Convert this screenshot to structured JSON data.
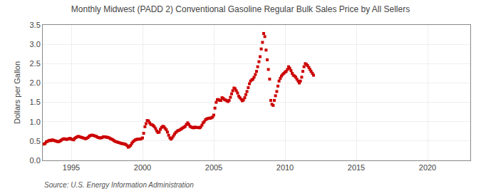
{
  "chart_data": {
    "type": "scatter",
    "title": "Monthly Midwest (PADD 2) Conventional Gasoline Regular Bulk Sales Price by All Sellers",
    "ylabel": "Dollars per Gallon",
    "annotation": "Source: U.S. Energy Information Administration",
    "color": "#CC0000",
    "marker": "square",
    "grid": true,
    "xlim": [
      1993.0,
      2023.0
    ],
    "ylim": [
      0.0,
      3.5
    ],
    "xticks": [
      1995,
      2000,
      2005,
      2010,
      2015,
      2020
    ],
    "yticks": [
      {
        "value": 0.0,
        "label": "0.0"
      },
      0.5,
      {
        "value": 1.0,
        "label": "1.0"
      },
      1.5,
      {
        "value": 2.0,
        "label": "2.0"
      },
      2.5,
      {
        "value": 3.0,
        "label": "3.0"
      },
      3.5
    ],
    "x": [
      1993.08,
      1993.17,
      1993.25,
      1993.33,
      1993.42,
      1993.5,
      1993.58,
      1993.67,
      1993.75,
      1993.83,
      1993.92,
      1994.0,
      1994.08,
      1994.17,
      1994.25,
      1994.33,
      1994.42,
      1994.5,
      1994.58,
      1994.67,
      1994.75,
      1994.83,
      1994.92,
      1995.0,
      1995.08,
      1995.17,
      1995.25,
      1995.33,
      1995.42,
      1995.5,
      1995.58,
      1995.67,
      1995.75,
      1995.83,
      1995.92,
      1996.0,
      1996.08,
      1996.17,
      1996.25,
      1996.33,
      1996.42,
      1996.5,
      1996.58,
      1996.67,
      1996.75,
      1996.83,
      1996.92,
      1997.0,
      1997.08,
      1997.17,
      1997.25,
      1997.33,
      1997.42,
      1997.5,
      1997.58,
      1997.67,
      1997.75,
      1997.83,
      1997.92,
      1998.0,
      1998.08,
      1998.17,
      1998.25,
      1998.33,
      1998.42,
      1998.5,
      1998.58,
      1998.67,
      1998.75,
      1998.83,
      1998.92,
      1999.0,
      1999.08,
      1999.17,
      1999.25,
      1999.33,
      1999.42,
      1999.5,
      1999.58,
      1999.67,
      1999.75,
      1999.83,
      1999.92,
      2000.0,
      2000.08,
      2000.17,
      2000.25,
      2000.33,
      2000.42,
      2000.5,
      2000.58,
      2000.67,
      2000.75,
      2000.83,
      2000.92,
      2001.0,
      2001.08,
      2001.17,
      2001.25,
      2001.33,
      2001.42,
      2001.5,
      2001.58,
      2001.67,
      2001.75,
      2001.83,
      2001.92,
      2002.0,
      2002.08,
      2002.17,
      2002.25,
      2002.33,
      2002.42,
      2002.5,
      2002.58,
      2002.67,
      2002.75,
      2002.83,
      2002.92,
      2003.0,
      2003.08,
      2003.17,
      2003.25,
      2003.33,
      2003.42,
      2003.5,
      2003.58,
      2003.67,
      2003.75,
      2003.83,
      2003.92,
      2004.0,
      2004.08,
      2004.17,
      2004.25,
      2004.33,
      2004.42,
      2004.5,
      2004.58,
      2004.67,
      2004.75,
      2004.83,
      2004.92,
      2005.0,
      2005.08,
      2005.17,
      2005.25,
      2005.33,
      2005.42,
      2005.5,
      2005.58,
      2005.67,
      2005.75,
      2005.83,
      2005.92,
      2006.0,
      2006.08,
      2006.17,
      2006.25,
      2006.33,
      2006.42,
      2006.5,
      2006.58,
      2006.67,
      2006.75,
      2006.83,
      2006.92,
      2007.0,
      2007.08,
      2007.17,
      2007.25,
      2007.33,
      2007.42,
      2007.5,
      2007.58,
      2007.67,
      2007.75,
      2007.83,
      2007.92,
      2008.0,
      2008.08,
      2008.17,
      2008.25,
      2008.33,
      2008.42,
      2008.5,
      2008.58,
      2008.67,
      2008.75,
      2008.83,
      2008.92,
      2009.0,
      2009.08,
      2009.17,
      2009.25,
      2009.33,
      2009.42,
      2009.5,
      2009.58,
      2009.67,
      2009.75,
      2009.83,
      2009.92,
      2010.0,
      2010.08,
      2010.17,
      2010.25,
      2010.33,
      2010.42,
      2010.5,
      2010.58,
      2010.67,
      2010.75,
      2010.83,
      2010.92,
      2011.0,
      2011.08,
      2011.17,
      2011.25,
      2011.33,
      2011.42,
      2011.5,
      2011.58,
      2011.67,
      2011.75,
      2011.83,
      2011.92,
      2012.0
    ],
    "values": [
      0.42,
      0.44,
      0.48,
      0.49,
      0.51,
      0.52,
      0.51,
      0.53,
      0.52,
      0.51,
      0.5,
      0.49,
      0.48,
      0.49,
      0.51,
      0.53,
      0.55,
      0.56,
      0.55,
      0.54,
      0.55,
      0.56,
      0.57,
      0.55,
      0.54,
      0.53,
      0.57,
      0.59,
      0.61,
      0.62,
      0.61,
      0.6,
      0.59,
      0.58,
      0.57,
      0.56,
      0.57,
      0.59,
      0.62,
      0.64,
      0.65,
      0.65,
      0.64,
      0.63,
      0.62,
      0.6,
      0.59,
      0.58,
      0.58,
      0.59,
      0.61,
      0.61,
      0.6,
      0.6,
      0.59,
      0.58,
      0.56,
      0.55,
      0.53,
      0.51,
      0.49,
      0.48,
      0.47,
      0.46,
      0.45,
      0.44,
      0.43,
      0.43,
      0.42,
      0.41,
      0.38,
      0.34,
      0.36,
      0.39,
      0.44,
      0.48,
      0.51,
      0.53,
      0.54,
      0.55,
      0.55,
      0.55,
      0.56,
      0.58,
      0.7,
      0.87,
      0.95,
      1.03,
      1.02,
      0.97,
      0.93,
      0.92,
      0.9,
      0.87,
      0.82,
      0.76,
      0.72,
      0.73,
      0.8,
      0.85,
      0.88,
      0.87,
      0.83,
      0.79,
      0.73,
      0.65,
      0.58,
      0.55,
      0.58,
      0.63,
      0.68,
      0.72,
      0.75,
      0.77,
      0.78,
      0.8,
      0.82,
      0.84,
      0.86,
      0.88,
      0.93,
      0.97,
      0.93,
      0.88,
      0.86,
      0.85,
      0.84,
      0.86,
      0.85,
      0.85,
      0.85,
      0.84,
      0.86,
      0.91,
      0.97,
      1.0,
      1.05,
      1.07,
      1.08,
      1.09,
      1.09,
      1.1,
      1.12,
      1.17,
      1.35,
      1.5,
      1.57,
      1.57,
      1.55,
      1.55,
      1.62,
      1.6,
      1.57,
      1.56,
      1.54,
      1.52,
      1.55,
      1.63,
      1.72,
      1.8,
      1.87,
      1.85,
      1.8,
      1.74,
      1.66,
      1.62,
      1.58,
      1.54,
      1.56,
      1.62,
      1.7,
      1.78,
      1.88,
      1.98,
      2.05,
      2.08,
      2.1,
      2.15,
      2.22,
      2.3,
      2.42,
      2.55,
      2.68,
      2.88,
      3.05,
      3.28,
      3.2,
      2.85,
      2.6,
      2.35,
      2.1,
      1.55,
      1.45,
      1.42,
      1.55,
      1.67,
      1.78,
      1.92,
      2.05,
      2.12,
      2.18,
      2.22,
      2.25,
      2.28,
      2.3,
      2.35,
      2.42,
      2.38,
      2.32,
      2.25,
      2.2,
      2.18,
      2.15,
      2.1,
      2.05,
      2.0,
      2.05,
      2.15,
      2.3,
      2.42,
      2.5,
      2.48,
      2.45,
      2.4,
      2.35,
      2.3,
      2.25,
      2.2
    ]
  }
}
